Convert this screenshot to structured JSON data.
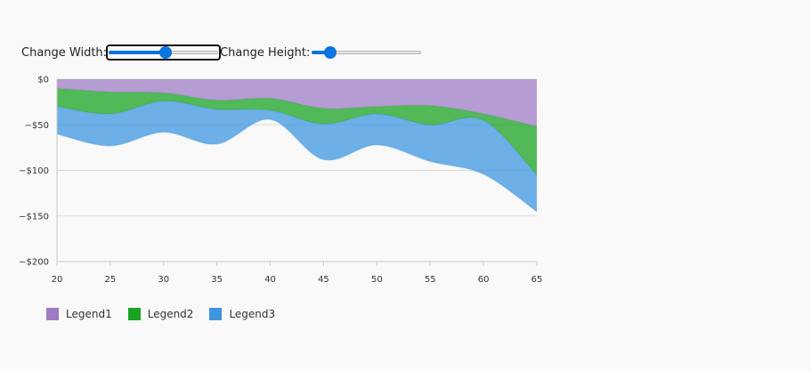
{
  "controls": {
    "width_label": "Change Width:",
    "height_label": "Change Height:",
    "width_slider_value": 0.52,
    "height_slider_value": 0.17
  },
  "chart_data": {
    "type": "area",
    "stacked": false,
    "x": [
      20,
      25,
      30,
      35,
      40,
      45,
      50,
      55,
      60,
      65
    ],
    "x_ticks": [
      "20",
      "25",
      "30",
      "35",
      "40",
      "45",
      "50",
      "55",
      "60",
      "65"
    ],
    "y_ticks": [
      "$0",
      "−$50",
      "−$100",
      "−$150",
      "−$200"
    ],
    "y_tick_values": [
      0,
      -50,
      -100,
      -150,
      -200
    ],
    "xlim": [
      20,
      65
    ],
    "ylim": [
      -200,
      0
    ],
    "grid": true,
    "legend_position": "bottom-left",
    "series": [
      {
        "name": "Legend1",
        "color": "#9e7cc5",
        "upper": [
          0,
          0,
          0,
          0,
          0,
          0,
          0,
          0,
          0,
          0
        ],
        "lower": [
          -10,
          -14,
          -15,
          -23,
          -21,
          -32,
          -30,
          -29,
          -38,
          -52
        ]
      },
      {
        "name": "Legend2",
        "color": "#18a322",
        "upper": [
          -10,
          -14,
          -15,
          -23,
          -21,
          -32,
          -30,
          -29,
          -38,
          -52
        ],
        "lower": [
          -30,
          -38,
          -24,
          -33,
          -34,
          -49,
          -38,
          -50,
          -45,
          -105
        ]
      },
      {
        "name": "Legend3",
        "color": "#3d96e0",
        "upper": [
          -30,
          -38,
          -24,
          -33,
          -34,
          -49,
          -38,
          -50,
          -45,
          -105
        ],
        "lower": [
          -60,
          -73,
          -58,
          -71,
          -44,
          -88,
          -72,
          -90,
          -104,
          -145
        ]
      }
    ]
  }
}
